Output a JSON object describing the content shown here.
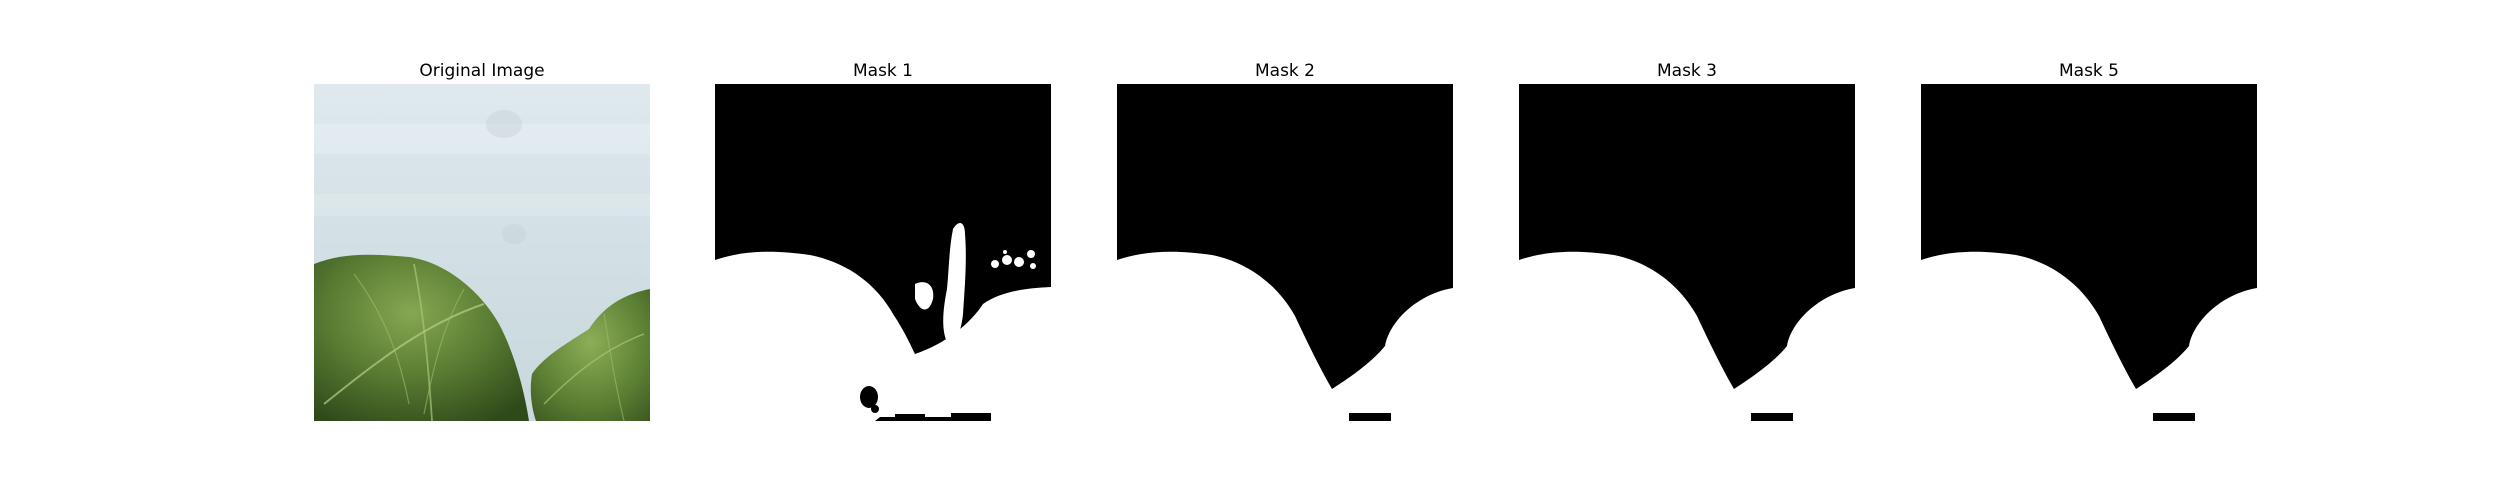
{
  "figure": {
    "panels": [
      {
        "title": "Original Image",
        "kind": "photo",
        "description_icon": "leaf-photo"
      },
      {
        "title": "Mask 1",
        "kind": "mask",
        "noisy": true
      },
      {
        "title": "Mask 2",
        "kind": "mask",
        "noisy": false
      },
      {
        "title": "Mask 3",
        "kind": "mask",
        "noisy": false
      },
      {
        "title": "Mask 5",
        "kind": "mask",
        "noisy": false
      }
    ]
  },
  "colors": {
    "background": "#ffffff",
    "mask_foreground": "#ffffff",
    "mask_background": "#000000",
    "sky_light": "#e4edf1",
    "sky_mid": "#d4e0e5",
    "leaf_dark": "#3d5a22",
    "leaf_mid": "#5f8237",
    "leaf_light": "#8cae57"
  }
}
